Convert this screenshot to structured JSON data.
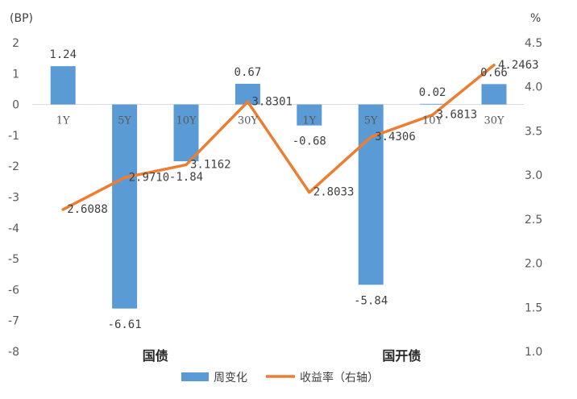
{
  "chart_data": {
    "type": "bar+line",
    "categories": [
      "1Y",
      "5Y",
      "10Y",
      "30Y",
      "1Y",
      "5Y",
      "10Y",
      "30Y"
    ],
    "groups": [
      {
        "name": "国债",
        "span": [
          0,
          3
        ]
      },
      {
        "name": "国开债",
        "span": [
          4,
          7
        ]
      }
    ],
    "left_axis": {
      "unit": "(BP)",
      "range": [
        -8,
        2
      ],
      "ticks": [
        "2",
        "1",
        "0",
        "-1",
        "-2",
        "-3",
        "-4",
        "-5",
        "-6",
        "-7",
        "-8"
      ]
    },
    "right_axis": {
      "unit": "%",
      "range": [
        1.0,
        4.5
      ],
      "ticks": [
        "4.5",
        "4.0",
        "3.5",
        "3.0",
        "2.5",
        "2.0",
        "1.5",
        "1.0"
      ]
    },
    "series": [
      {
        "name": "周变化",
        "kind": "bar",
        "axis": "left",
        "color": "#5B9BD5",
        "values": [
          1.24,
          -6.61,
          -1.84,
          0.67,
          -0.68,
          -5.84,
          0.02,
          0.66
        ],
        "labels": [
          "1.24",
          "-6.61",
          "-1.84",
          "0.67",
          "-0.68",
          "-5.84",
          "0.02",
          "0.66"
        ]
      },
      {
        "name": "收益率（右轴）",
        "kind": "line",
        "axis": "right",
        "color": "#ED7D31",
        "values": [
          2.6088,
          2.971,
          3.1162,
          3.8301,
          2.8033,
          3.4306,
          3.6813,
          4.2463
        ],
        "labels": [
          "2.6088",
          "2.9710",
          "3.1162",
          "3.8301",
          "2.8033",
          "3.4306",
          "3.6813",
          "4.2463"
        ]
      }
    ],
    "legend": {
      "placement": "bottom"
    },
    "grid": false
  }
}
